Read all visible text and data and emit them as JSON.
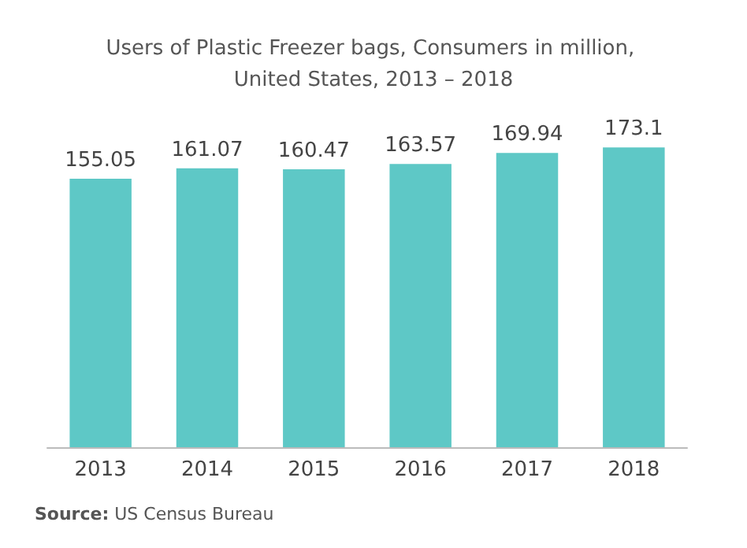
{
  "chart_data": {
    "type": "bar",
    "title": "Users of Plastic Freezer bags, Consumers in million, United States, 2013 – 2018",
    "categories": [
      "2013",
      "2014",
      "2015",
      "2016",
      "2017",
      "2018"
    ],
    "values": [
      155.05,
      161.07,
      160.47,
      163.57,
      169.94,
      173.1
    ],
    "color": "#5ec8c6",
    "data_labels": true,
    "annotations": [
      "Source: US Census Bureau"
    ]
  }
}
